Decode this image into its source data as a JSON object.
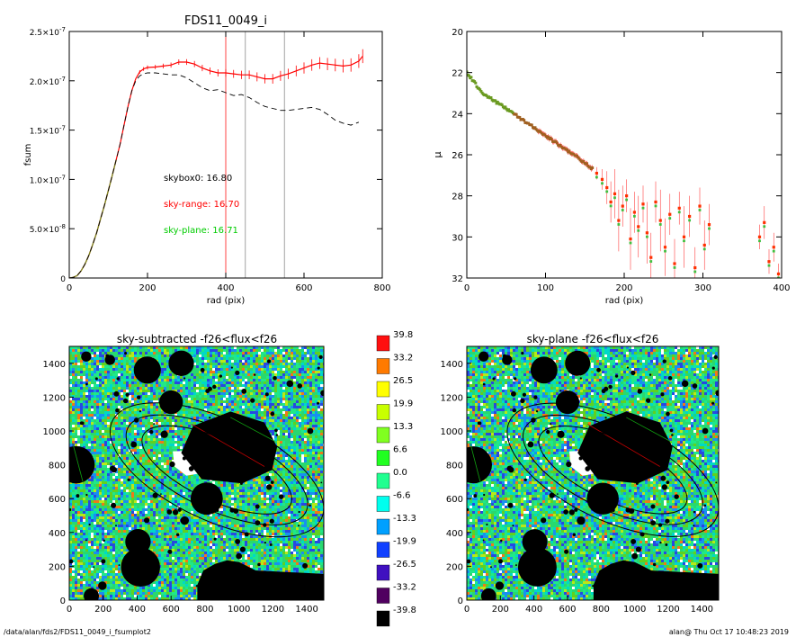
{
  "footer": {
    "path": "/data/alan/fds2/FDS11_0049_i_fsumplot2",
    "stamp": "alan@  Thu Oct 17 10:48:23 2019"
  },
  "colors": {
    "fsum_red": "#ff0000",
    "fsum_green": "#00cc00",
    "dashed": "#000000",
    "sky_range_line": "#ff3030",
    "sky_line": "#999999"
  },
  "chart_data": [
    {
      "type": "line",
      "title": "FDS11_0049_i",
      "xlabel": "rad (pix)",
      "ylabel": "fsum",
      "xlim": [
        0,
        800
      ],
      "ylim": [
        0,
        2.5e-07
      ],
      "x_ticks": [
        0,
        200,
        400,
        600,
        800
      ],
      "x_tick_labels": [
        "0",
        "200",
        "400",
        "600",
        "800"
      ],
      "y_ticks": [
        0,
        5e-08,
        1e-07,
        1.5e-07,
        2e-07,
        2.5e-07
      ],
      "y_tick_labels": [
        {
          "m": "0",
          "e": ""
        },
        {
          "m": "5.0×10",
          "e": "-8"
        },
        {
          "m": "1.0×10",
          "e": "-7"
        },
        {
          "m": "1.5×10",
          "e": "-7"
        },
        {
          "m": "2.0×10",
          "e": "-7"
        },
        {
          "m": "2.5×10",
          "e": "-7"
        }
      ],
      "annotations": [
        {
          "text": "skybox0: 16.80",
          "color": "#000000"
        },
        {
          "text": "sky-range: 16.70",
          "color": "#ff0000"
        },
        {
          "text": "sky-plane: 16.71",
          "color": "#00cc00"
        }
      ],
      "vlines": [
        {
          "x": 400,
          "color": "#ff3030"
        },
        {
          "x": 450,
          "color": "#999999"
        },
        {
          "x": 550,
          "color": "#999999"
        }
      ],
      "series": [
        {
          "color": "#ff0000",
          "x": [
            0,
            10,
            20,
            30,
            40,
            50,
            60,
            70,
            80,
            90,
            100,
            110,
            120,
            130,
            140,
            150,
            160,
            170,
            180,
            190,
            200,
            220,
            240,
            260,
            280,
            300,
            320,
            340,
            360,
            380,
            400,
            420,
            440,
            460,
            480,
            500,
            520,
            540,
            560,
            580,
            600,
            620,
            640,
            660,
            680,
            700,
            720,
            740,
            750
          ],
          "y": [
            0,
            6e-10,
            2.4e-09,
            7e-09,
            1.4e-08,
            2.3e-08,
            3.4e-08,
            4.6e-08,
            6e-08,
            7.4e-08,
            8.9e-08,
            1.04e-07,
            1.2e-07,
            1.36e-07,
            1.55e-07,
            1.74e-07,
            1.9e-07,
            2.02e-07,
            2.09e-07,
            2.12e-07,
            2.135e-07,
            2.14e-07,
            2.15e-07,
            2.16e-07,
            2.19e-07,
            2.19e-07,
            2.17e-07,
            2.13e-07,
            2.1e-07,
            2.08e-07,
            2.08e-07,
            2.07e-07,
            2.06e-07,
            2.06e-07,
            2.04e-07,
            2.02e-07,
            2.02e-07,
            2.05e-07,
            2.07e-07,
            2.1e-07,
            2.13e-07,
            2.16e-07,
            2.18e-07,
            2.17e-07,
            2.16e-07,
            2.15e-07,
            2.16e-07,
            2.2e-07,
            2.25e-07
          ]
        },
        {
          "color": "#000000",
          "dashed": true,
          "x": [
            0,
            10,
            20,
            30,
            40,
            50,
            60,
            70,
            80,
            90,
            100,
            110,
            120,
            130,
            140,
            150,
            160,
            170,
            180,
            190,
            200,
            220,
            240,
            260,
            280,
            300,
            320,
            340,
            360,
            380,
            400,
            420,
            440,
            460,
            480,
            500,
            520,
            540,
            560,
            580,
            600,
            620,
            640,
            660,
            680,
            700,
            720,
            740
          ],
          "y": [
            0,
            6e-10,
            2.4e-09,
            7e-09,
            1.4e-08,
            2.3e-08,
            3.4e-08,
            4.6e-08,
            6e-08,
            7.4e-08,
            8.9e-08,
            1.04e-07,
            1.2e-07,
            1.36e-07,
            1.55e-07,
            1.74e-07,
            1.9e-07,
            2e-07,
            2.05e-07,
            2.07e-07,
            2.08e-07,
            2.08e-07,
            2.07e-07,
            2.06e-07,
            2.06e-07,
            2.03e-07,
            1.98e-07,
            1.93e-07,
            1.9e-07,
            1.91e-07,
            1.88e-07,
            1.85e-07,
            1.86e-07,
            1.83e-07,
            1.78e-07,
            1.74e-07,
            1.72e-07,
            1.7e-07,
            1.7e-07,
            1.71e-07,
            1.72e-07,
            1.73e-07,
            1.71e-07,
            1.66e-07,
            1.6e-07,
            1.57e-07,
            1.55e-07,
            1.58e-07
          ]
        }
      ]
    },
    {
      "type": "scatter",
      "title": "",
      "xlabel": "rad (pix)",
      "ylabel": "μ",
      "xlim": [
        0,
        400
      ],
      "ylim": [
        32,
        20
      ],
      "x_ticks": [
        0,
        100,
        200,
        300,
        400
      ],
      "x_tick_labels": [
        "0",
        "100",
        "200",
        "300",
        "400"
      ],
      "y_ticks": [
        20,
        22,
        24,
        26,
        28,
        30,
        32
      ],
      "y_tick_labels": [
        "20",
        "22",
        "24",
        "26",
        "28",
        "30",
        "32"
      ],
      "profile": {
        "x": [
          0,
          20,
          40,
          60,
          80,
          100,
          120,
          140,
          150,
          160
        ],
        "y": [
          22.0,
          23.0,
          23.5,
          24.0,
          24.55,
          25.05,
          25.6,
          26.1,
          26.4,
          26.7
        ]
      },
      "scatter_points": [
        {
          "x": 165,
          "y": 26.9,
          "err": 0.3
        },
        {
          "x": 172,
          "y": 27.2,
          "err": 0.5
        },
        {
          "x": 178,
          "y": 27.6,
          "err": 0.8
        },
        {
          "x": 183,
          "y": 28.3,
          "err": 1.0
        },
        {
          "x": 188,
          "y": 27.9,
          "err": 1.2
        },
        {
          "x": 193,
          "y": 29.2,
          "err": 1.5
        },
        {
          "x": 198,
          "y": 28.5,
          "err": 1.0
        },
        {
          "x": 203,
          "y": 28.0,
          "err": 0.8
        },
        {
          "x": 208,
          "y": 30.1,
          "err": 1.5
        },
        {
          "x": 213,
          "y": 28.8,
          "err": 1.0
        },
        {
          "x": 218,
          "y": 29.5,
          "err": 1.5
        },
        {
          "x": 224,
          "y": 28.4,
          "err": 0.9
        },
        {
          "x": 229,
          "y": 29.8,
          "err": 1.5
        },
        {
          "x": 234,
          "y": 31.0,
          "err": 1.2
        },
        {
          "x": 240,
          "y": 28.3,
          "err": 1.0
        },
        {
          "x": 246,
          "y": 29.2,
          "err": 1.5
        },
        {
          "x": 252,
          "y": 30.5,
          "err": 1.4
        },
        {
          "x": 258,
          "y": 28.9,
          "err": 1.0
        },
        {
          "x": 264,
          "y": 31.3,
          "err": 1.2
        },
        {
          "x": 270,
          "y": 28.6,
          "err": 0.8
        },
        {
          "x": 276,
          "y": 30.0,
          "err": 1.5
        },
        {
          "x": 283,
          "y": 29.0,
          "err": 1.0
        },
        {
          "x": 290,
          "y": 31.5,
          "err": 1.0
        },
        {
          "x": 296,
          "y": 28.5,
          "err": 0.9
        },
        {
          "x": 302,
          "y": 30.4,
          "err": 1.2
        },
        {
          "x": 308,
          "y": 29.4,
          "err": 1.0
        },
        {
          "x": 372,
          "y": 30.0,
          "err": 0.6
        },
        {
          "x": 378,
          "y": 29.3,
          "err": 0.8
        },
        {
          "x": 384,
          "y": 31.2,
          "err": 0.6
        },
        {
          "x": 390,
          "y": 30.5,
          "err": 0.7
        },
        {
          "x": 396,
          "y": 31.8,
          "err": 0.5
        }
      ]
    },
    {
      "type": "heatmap",
      "title": "sky-subtracted -f26<flux<f26",
      "xlim": [
        0,
        1500
      ],
      "ylim": [
        0,
        1500
      ],
      "x_ticks": [
        0,
        200,
        400,
        600,
        800,
        1000,
        1200,
        1400
      ],
      "y_ticks": [
        0,
        200,
        400,
        600,
        800,
        1000,
        1200,
        1400
      ],
      "tick_labels": [
        "0",
        "200",
        "400",
        "600",
        "800",
        "1000",
        "1200",
        "1400"
      ]
    },
    {
      "type": "heatmap",
      "title": "sky-plane -f26<flux<f26",
      "xlim": [
        0,
        1500
      ],
      "ylim": [
        0,
        1500
      ],
      "x_ticks": [
        0,
        200,
        400,
        600,
        800,
        1000,
        1200,
        1400
      ],
      "y_ticks": [
        0,
        200,
        400,
        600,
        800,
        1000,
        1200,
        1400
      ],
      "tick_labels": [
        "0",
        "200",
        "400",
        "600",
        "800",
        "1000",
        "1200",
        "1400"
      ]
    }
  ],
  "colorbar": {
    "labels": [
      "39.8",
      "33.2",
      "26.5",
      "19.9",
      "13.3",
      "6.6",
      "0.0",
      "-6.6",
      "-13.3",
      "-19.9",
      "-26.5",
      "-33.2",
      "-39.8"
    ],
    "colors": [
      "#ff1010",
      "#ff7a00",
      "#ffff00",
      "#c8ff00",
      "#80ff20",
      "#20ff20",
      "#20ff90",
      "#00ffee",
      "#00a0ff",
      "#1040ff",
      "#4010c0",
      "#500060",
      "#000000"
    ]
  },
  "sky_map": {
    "palette": [
      "#20d060",
      "#20e888",
      "#00d8c8",
      "#1890f0",
      "#2848e0",
      "#60d020",
      "#b8e818",
      "#f07818",
      "#ffffff"
    ],
    "weights": [
      22,
      16,
      10,
      11,
      10,
      12,
      6,
      4,
      3
    ],
    "blobs": [
      {
        "x": 100,
        "y": 1440,
        "r": 30
      },
      {
        "x": 240,
        "y": 1420,
        "r": 30
      },
      {
        "x": 460,
        "y": 1360,
        "r": 80
      },
      {
        "x": 660,
        "y": 1400,
        "r": 75
      },
      {
        "x": 600,
        "y": 1170,
        "r": 70
      },
      {
        "x": 40,
        "y": 800,
        "r": 110
      },
      {
        "x": 810,
        "y": 600,
        "r": 95
      },
      {
        "x": 420,
        "y": 195,
        "r": 115
      },
      {
        "x": 405,
        "y": 345,
        "r": 75
      },
      {
        "x": 130,
        "y": 25,
        "r": 45
      },
      {
        "x": 195,
        "y": 85,
        "r": 25
      },
      {
        "x": 380,
        "y": 920,
        "r": 18
      },
      {
        "x": 1300,
        "y": 1280,
        "r": 20
      },
      {
        "x": 1420,
        "y": 1000,
        "r": 18
      },
      {
        "x": 1170,
        "y": 720,
        "r": 16
      },
      {
        "x": 1000,
        "y": 260,
        "r": 18
      },
      {
        "x": 560,
        "y": 980,
        "r": 22
      },
      {
        "x": 680,
        "y": 470,
        "r": 25
      },
      {
        "x": 1080,
        "y": 1180,
        "r": 14
      },
      {
        "x": 260,
        "y": 560,
        "r": 16
      }
    ],
    "hexagon": [
      [
        730,
        1030
      ],
      [
        950,
        1115
      ],
      [
        1150,
        1050
      ],
      [
        1225,
        905
      ],
      [
        1195,
        770
      ],
      [
        1020,
        690
      ],
      [
        780,
        715
      ],
      [
        660,
        870
      ]
    ],
    "bottom_blob": [
      [
        755,
        0
      ],
      [
        755,
        90
      ],
      [
        790,
        175
      ],
      [
        860,
        215
      ],
      [
        930,
        235
      ],
      [
        1000,
        225
      ],
      [
        1050,
        200
      ],
      [
        1100,
        175
      ],
      [
        1200,
        170
      ],
      [
        1300,
        165
      ],
      [
        1400,
        160
      ],
      [
        1500,
        155
      ],
      [
        1500,
        0
      ]
    ],
    "white_hole": [
      [
        610,
        880
      ],
      [
        770,
        885
      ],
      [
        805,
        820
      ],
      [
        775,
        750
      ],
      [
        690,
        735
      ],
      [
        620,
        790
      ]
    ],
    "ellipses": [
      {
        "cx": 870,
        "cy": 770,
        "a": 680,
        "b": 300,
        "angle": -25
      },
      {
        "cx": 870,
        "cy": 770,
        "a": 580,
        "b": 235,
        "angle": -25
      },
      {
        "cx": 870,
        "cy": 770,
        "a": 480,
        "b": 180,
        "angle": -25
      }
    ]
  }
}
